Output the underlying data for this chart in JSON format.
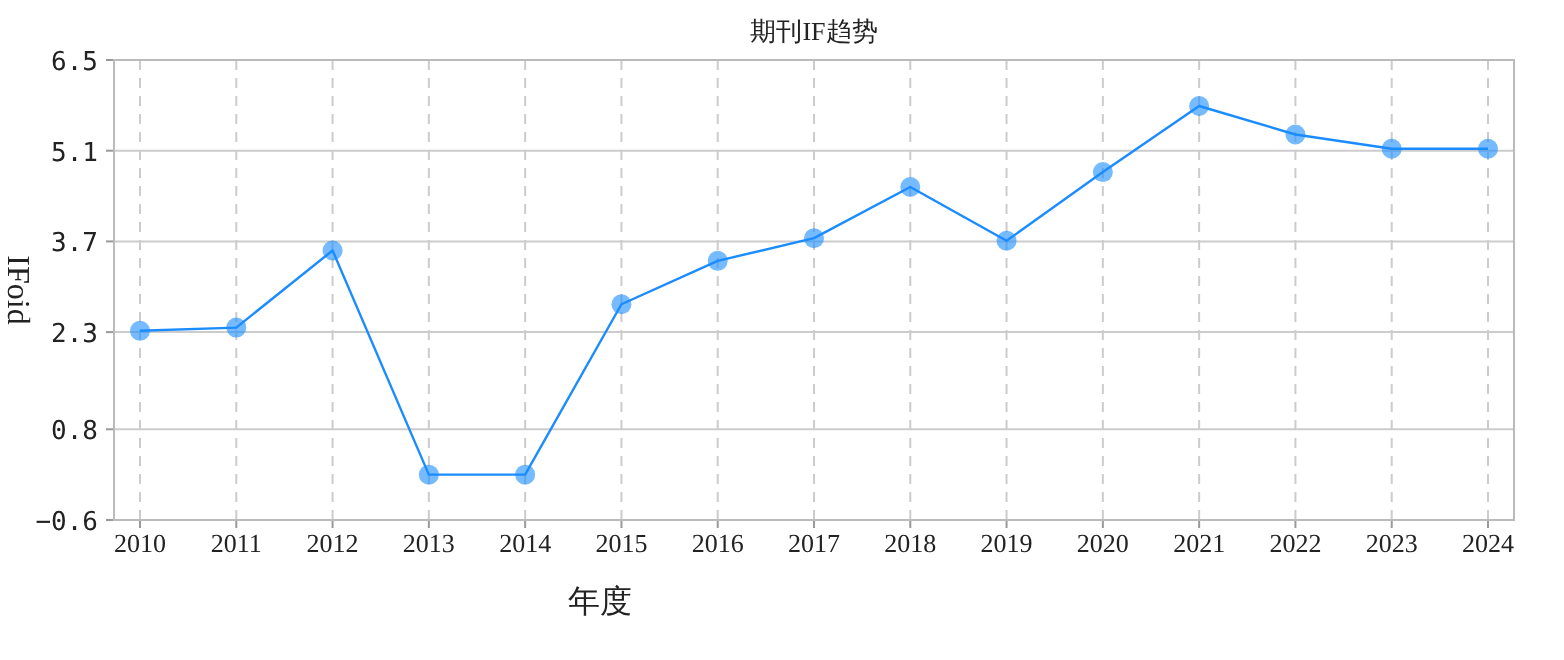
{
  "chart_data": {
    "type": "line",
    "title": "期刊IF趋势",
    "xlabel": "年度",
    "ylabel": "IFoid",
    "categories": [
      "2010",
      "2011",
      "2012",
      "2013",
      "2014",
      "2015",
      "2016",
      "2017",
      "2018",
      "2019",
      "2020",
      "2021",
      "2022",
      "2023",
      "2024"
    ],
    "series": [
      {
        "color": "#1a8cff",
        "values": [
          2.32,
          2.37,
          3.56,
          0.1,
          0.1,
          2.73,
          3.4,
          3.75,
          4.54,
          3.71,
          4.77,
          5.79,
          5.35,
          5.13,
          5.13
        ]
      }
    ],
    "ylim": [
      -0.6,
      6.5
    ],
    "yticks": [
      -0.6,
      0.8,
      2.3,
      3.7,
      5.1,
      6.5
    ],
    "grid": true,
    "marker": "circle",
    "line_style": "solid"
  }
}
